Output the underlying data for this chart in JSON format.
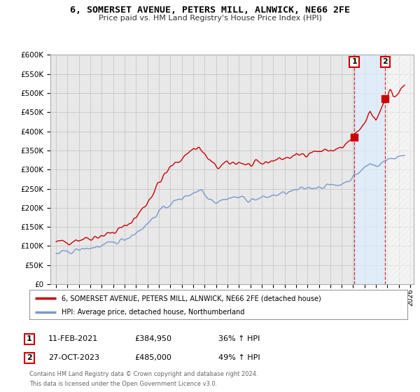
{
  "title": "6, SOMERSET AVENUE, PETERS MILL, ALNWICK, NE66 2FE",
  "subtitle": "Price paid vs. HM Land Registry's House Price Index (HPI)",
  "background_color": "#ffffff",
  "grid_color": "#cccccc",
  "plot_bg_color": "#e8e8e8",
  "red_line_color": "#cc0000",
  "blue_line_color": "#7799cc",
  "sale_1_date": "11-FEB-2021",
  "sale_1_price": "£384,950",
  "sale_1_hpi": "36% ↑ HPI",
  "sale_2_date": "27-OCT-2023",
  "sale_2_price": "£485,000",
  "sale_2_hpi": "49% ↑ HPI",
  "legend_label_red": "6, SOMERSET AVENUE, PETERS MILL, ALNWICK, NE66 2FE (detached house)",
  "legend_label_blue": "HPI: Average price, detached house, Northumberland",
  "footer_text": "Contains HM Land Registry data © Crown copyright and database right 2024.\nThis data is licensed under the Open Government Licence v3.0.",
  "ylim": [
    0,
    600000
  ],
  "yticks": [
    0,
    50000,
    100000,
    150000,
    200000,
    250000,
    300000,
    350000,
    400000,
    450000,
    500000,
    550000,
    600000
  ],
  "ytick_labels": [
    "£0",
    "£50K",
    "£100K",
    "£150K",
    "£200K",
    "£250K",
    "£300K",
    "£350K",
    "£400K",
    "£450K",
    "£500K",
    "£550K",
    "£600K"
  ],
  "sale1_year": 2021.1,
  "sale1_price": 384950,
  "sale2_year": 2023.8,
  "sale2_price": 485000,
  "xmin": 1995,
  "xmax": 2026
}
